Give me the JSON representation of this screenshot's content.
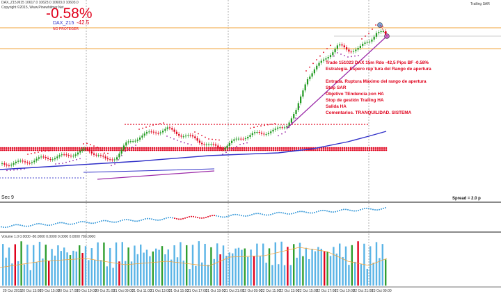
{
  "header": {
    "symbol_info": "DAX_Z15,M15  10617.0  10623.0  10603.0  10603.0",
    "site": "Copyright ©2015, Www.Pinewhilmer.Net",
    "trailing_label": "Trailing SAR"
  },
  "pnl": {
    "percent": "-0.58%",
    "instrument": "DAX_Z15",
    "points": "-42.5",
    "protect": "NO PROTEGER"
  },
  "trade_notes": [
    "Trade 151023 DAX 15m Rdo -42,5 Pips BF -0.58%",
    "Estrategia. Espero rup`tura del Rango de apertura",
    "",
    "Entrada. Ruptura Máximo del rango de apertura",
    "Stop SAR",
    "Objetivo TEndencia con HA",
    "Stop de gestión Trailing HA",
    "Salida HA",
    "Comentarios. TRANQUILIDAD. SISTEMA"
  ],
  "subpanels": {
    "indicator_label": "Sec 9",
    "spread_label": "Spread = 2.0 p",
    "volume_label": "Volume 1.0  0.0000 -80.0000  0.0000  0.0000  0.0000  780.0000"
  },
  "time_axis": [
    "20 Oct 2015",
    "20 Oct 13:00",
    "20 Oct 15:00",
    "20 Oct 17:00",
    "20 Oct 19:00",
    "20 Oct 21:00",
    "21 Oct 09:00",
    "21 Oct 11:00",
    "21 Oct 13:00",
    "21 Oct 15:00",
    "21 Oct 17:00",
    "21 Oct 19:00",
    "21 Oct 21:00",
    "22 Oct 09:00",
    "22 Oct 11:00",
    "22 Oct 13:00",
    "22 Oct 15:00",
    "22 Oct 17:00",
    "22 Oct 19:00",
    "22 Oct 21:00",
    "23 Oct 09:00"
  ],
  "colors": {
    "bull": "#1f9a1f",
    "bear": "#e0001b",
    "level": "#f2a33a",
    "ma_blue": "#3030c8",
    "trend_purple": "#9b2aa8",
    "volume": "#5ab4e6",
    "volume_up": "#2f9e2f",
    "volume_down": "#e0001b",
    "volume_ma": "#f2a33a"
  }
}
